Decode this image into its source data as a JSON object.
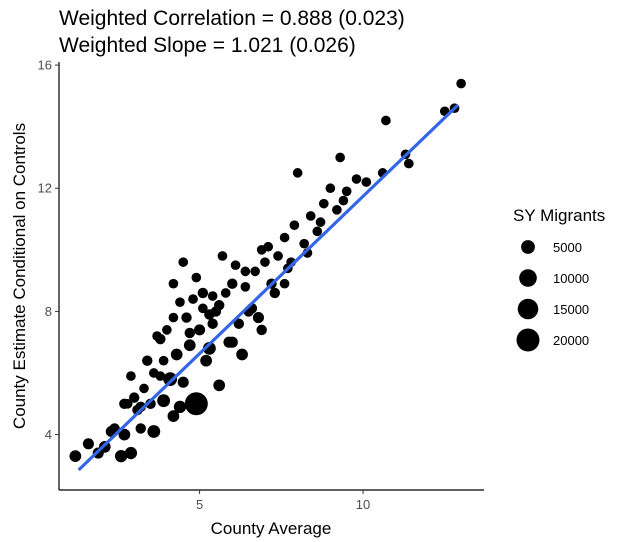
{
  "chart_data": {
    "type": "scatter",
    "title_line1": "Weighted Correlation = 0.888 (0.023)",
    "title_line2": "Weighted Slope = 1.021 (0.026)",
    "xlabel": "County Average",
    "ylabel": "County Estimate Conditional on Controls",
    "xlim": [
      0.7,
      13.7
    ],
    "ylim": [
      2.2,
      16.1
    ],
    "x_ticks": [
      5,
      10
    ],
    "y_ticks": [
      4,
      8,
      12,
      16
    ],
    "grid": false,
    "legend": {
      "title": "SY Migrants",
      "placement": "right",
      "entries": [
        {
          "label": "5000",
          "size_value": 5000
        },
        {
          "label": "10000",
          "size_value": 10000
        },
        {
          "label": "15000",
          "size_value": 15000
        },
        {
          "label": "20000",
          "size_value": 20000
        }
      ]
    },
    "fit_line": {
      "x": [
        1.3,
        12.9
      ],
      "y": [
        2.85,
        14.7
      ],
      "color": "#3366e6"
    },
    "point_color": "#000000",
    "series": [
      {
        "points": [
          [
            1.2,
            3.3,
            3000
          ],
          [
            1.6,
            3.7,
            2500
          ],
          [
            1.9,
            3.4,
            2500
          ],
          [
            2.1,
            3.6,
            3000
          ],
          [
            2.4,
            4.2,
            2000
          ],
          [
            2.7,
            4.0,
            3000
          ],
          [
            2.6,
            3.3,
            3500
          ],
          [
            2.9,
            3.4,
            3500
          ],
          [
            2.7,
            5.0,
            2000
          ],
          [
            3.1,
            4.8,
            2000
          ],
          [
            3.2,
            4.2,
            2000
          ],
          [
            3.3,
            5.5,
            1500
          ],
          [
            2.9,
            5.9,
            1500
          ],
          [
            3.4,
            6.4,
            2000
          ],
          [
            3.6,
            6.0,
            1500
          ],
          [
            3.9,
            6.4,
            1500
          ],
          [
            3.7,
            7.2,
            1500
          ],
          [
            4.0,
            7.4,
            1500
          ],
          [
            4.2,
            7.8,
            1500
          ],
          [
            3.9,
            5.1,
            4000
          ],
          [
            4.1,
            5.8,
            5000
          ],
          [
            4.3,
            6.6,
            3000
          ],
          [
            4.5,
            5.7,
            2500
          ],
          [
            4.7,
            6.9,
            3000
          ],
          [
            4.6,
            7.8,
            2000
          ],
          [
            4.8,
            8.4,
            1500
          ],
          [
            5.1,
            8.6,
            2000
          ],
          [
            5.0,
            7.4,
            2500
          ],
          [
            5.2,
            6.4,
            3000
          ],
          [
            5.4,
            7.6,
            2000
          ],
          [
            5.6,
            8.2,
            2000
          ],
          [
            5.8,
            8.6,
            1500
          ],
          [
            6.0,
            8.9,
            2000
          ],
          [
            6.2,
            7.6,
            2000
          ],
          [
            6.5,
            8.0,
            2000
          ],
          [
            6.4,
            8.8,
            1500
          ],
          [
            6.7,
            9.3,
            1500
          ],
          [
            7.0,
            9.6,
            1500
          ],
          [
            7.2,
            8.9,
            2000
          ],
          [
            7.4,
            9.8,
            1500
          ],
          [
            7.6,
            10.4,
            1500
          ],
          [
            7.9,
            10.8,
            1500
          ],
          [
            8.2,
            10.2,
            1500
          ],
          [
            8.4,
            11.1,
            1500
          ],
          [
            8.6,
            10.6,
            1500
          ],
          [
            8.8,
            11.5,
            1500
          ],
          [
            9.0,
            12.0,
            1500
          ],
          [
            9.2,
            11.3,
            1500
          ],
          [
            9.5,
            11.9,
            1500
          ],
          [
            9.8,
            12.3,
            1500
          ],
          [
            10.1,
            12.2,
            1500
          ],
          [
            10.7,
            14.2,
            1500
          ],
          [
            10.6,
            12.5,
            1500
          ],
          [
            11.3,
            13.1,
            1500
          ],
          [
            11.4,
            12.8,
            1500
          ],
          [
            12.5,
            14.5,
            1500
          ],
          [
            12.8,
            14.6,
            1500
          ],
          [
            13.0,
            15.4,
            1500
          ],
          [
            9.3,
            13.0,
            1500
          ],
          [
            8.0,
            12.5,
            1500
          ],
          [
            5.9,
            7.0,
            2500
          ],
          [
            6.1,
            9.5,
            1500
          ],
          [
            4.4,
            8.3,
            1500
          ],
          [
            3.5,
            5.0,
            2000
          ],
          [
            2.3,
            4.1,
            2500
          ],
          [
            3.0,
            5.2,
            2000
          ],
          [
            4.9,
            5.0,
            20000
          ],
          [
            5.3,
            6.8,
            4000
          ],
          [
            6.3,
            6.6,
            3000
          ],
          [
            6.8,
            7.8,
            2500
          ],
          [
            7.3,
            8.6,
            2000
          ],
          [
            7.6,
            8.9,
            1500
          ],
          [
            5.5,
            8.0,
            2000
          ],
          [
            4.9,
            9.1,
            1500
          ],
          [
            6.9,
            10.0,
            1500
          ],
          [
            7.7,
            9.4,
            1500
          ],
          [
            5.7,
            9.8,
            1500
          ],
          [
            4.2,
            8.9,
            1500
          ],
          [
            3.8,
            7.1,
            2000
          ],
          [
            4.7,
            7.3,
            2000
          ],
          [
            5.4,
            8.5,
            1500
          ],
          [
            6.6,
            8.1,
            2000
          ],
          [
            8.3,
            9.9,
            1500
          ],
          [
            7.1,
            10.1,
            1500
          ],
          [
            4.5,
            9.6,
            1500
          ],
          [
            5.1,
            8.1,
            1500
          ],
          [
            6.4,
            9.3,
            1500
          ],
          [
            7.8,
            9.6,
            1500
          ],
          [
            8.7,
            10.9,
            1500
          ],
          [
            9.4,
            11.6,
            1500
          ],
          [
            3.2,
            4.9,
            2000
          ],
          [
            3.8,
            5.9,
            1500
          ],
          [
            4.2,
            4.6,
            3000
          ],
          [
            3.6,
            4.1,
            4000
          ],
          [
            4.4,
            4.9,
            3500
          ],
          [
            5.6,
            5.6,
            3000
          ],
          [
            6.0,
            7.0,
            2500
          ],
          [
            6.9,
            7.4,
            2000
          ],
          [
            2.8,
            5.0,
            1500
          ],
          [
            5.3,
            7.9,
            2000
          ]
        ]
      }
    ]
  }
}
